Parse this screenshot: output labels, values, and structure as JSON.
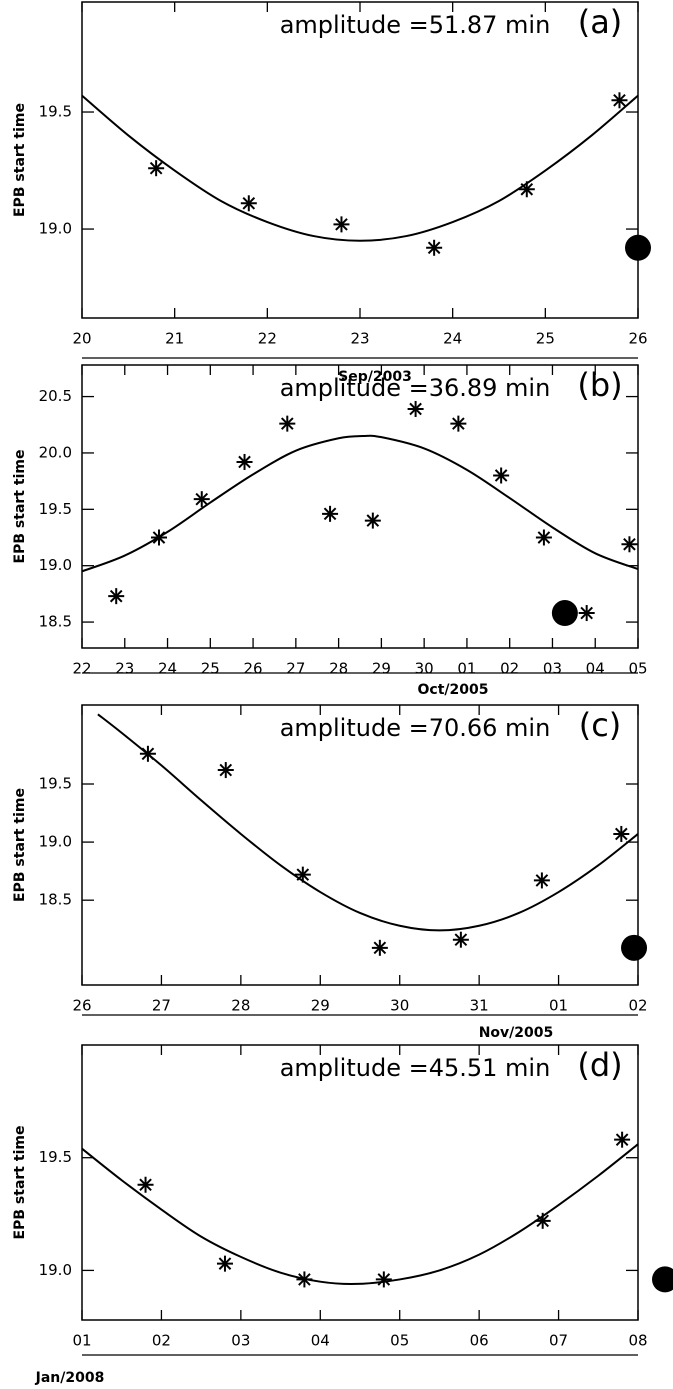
{
  "chart_data": [
    {
      "type": "scatter",
      "annotation": "amplitude =51.87 min",
      "panel_label": "(a)",
      "ylabel": "EPB start time",
      "xlabel": "Sep/2003",
      "xlim": [
        20,
        26
      ],
      "ylim": [
        18.62,
        19.97
      ],
      "xticks": [
        20,
        21,
        22,
        23,
        24,
        25,
        26
      ],
      "yticks": [
        {
          "value": 19,
          "label": "19.0"
        },
        19.5
      ],
      "series": [
        {
          "mode": "markers",
          "marker": "asterisk",
          "color": "#000000",
          "x": [
            20.8,
            21.8,
            22.8,
            23.8,
            24.8,
            25.8
          ],
          "values": [
            19.26,
            19.11,
            19.02,
            18.92,
            19.17,
            19.55
          ]
        },
        {
          "mode": "line",
          "color": "#000000",
          "x": [
            20,
            20.5,
            21,
            21.5,
            22,
            22.5,
            23,
            23.5,
            24,
            24.5,
            25,
            25.5,
            26
          ],
          "values": [
            19.57,
            19.4,
            19.25,
            19.12,
            19.03,
            18.97,
            18.95,
            18.97,
            19.03,
            19.12,
            19.25,
            19.4,
            19.57
          ]
        },
        {
          "mode": "markers",
          "marker": "dot",
          "color": "#000000",
          "x": [
            26
          ],
          "values": [
            18.92
          ]
        }
      ]
    },
    {
      "type": "scatter",
      "annotation": "amplitude =36.89 min",
      "panel_label": "(b)",
      "ylabel": "EPB start time",
      "xlabel": "Oct/2005",
      "xlim": [
        22,
        35
      ],
      "ylim": [
        18.27,
        20.78
      ],
      "xticks": [
        22,
        23,
        24,
        25,
        26,
        27,
        28,
        29,
        30,
        {
          "value": 31,
          "label": "01"
        },
        {
          "value": 32,
          "label": "02"
        },
        {
          "value": 33,
          "label": "03"
        },
        {
          "value": 34,
          "label": "04"
        },
        {
          "value": 35,
          "label": "05"
        }
      ],
      "yticks": [
        18.5,
        {
          "value": 19,
          "label": "19.0"
        },
        19.5,
        {
          "value": 20,
          "label": "20.0"
        },
        20.5
      ],
      "series": [
        {
          "mode": "markers",
          "marker": "asterisk",
          "color": "#000000",
          "x": [
            22.8,
            23.8,
            24.8,
            25.8,
            26.8,
            27.8,
            28.8,
            29.8,
            30.8,
            31.8,
            32.8,
            33.8,
            34.8
          ],
          "values": [
            18.73,
            19.25,
            19.59,
            19.92,
            20.26,
            19.46,
            19.4,
            20.39,
            20.26,
            19.8,
            19.25,
            18.58,
            19.19
          ]
        },
        {
          "mode": "line",
          "color": "#000000",
          "x": [
            22,
            23,
            24,
            25,
            26,
            27,
            28,
            28.57,
            29,
            30,
            31,
            32,
            33,
            34,
            35
          ],
          "values": [
            18.95,
            19.09,
            19.3,
            19.56,
            19.81,
            20.02,
            20.13,
            20.15,
            20.14,
            20.04,
            19.85,
            19.6,
            19.34,
            19.11,
            18.97
          ]
        },
        {
          "mode": "markers",
          "marker": "dot",
          "color": "#000000",
          "x": [
            33.29
          ],
          "values": [
            18.58
          ]
        }
      ]
    },
    {
      "type": "scatter",
      "annotation": "amplitude =70.66 min",
      "panel_label": "(c)",
      "ylabel": "EPB start time",
      "xlabel": "Nov/2005",
      "xlim": [
        26,
        33
      ],
      "ylim": [
        17.77,
        20.18
      ],
      "xticks": [
        26,
        27,
        28,
        29,
        30,
        31,
        {
          "value": 32,
          "label": "01"
        },
        {
          "value": 33,
          "label": "02"
        }
      ],
      "yticks": [
        18.5,
        {
          "value": 19,
          "label": "19.0"
        },
        19.5
      ],
      "series": [
        {
          "mode": "markers",
          "marker": "asterisk",
          "color": "#000000",
          "x": [
            26.83,
            27.81,
            28.78,
            29.75,
            30.77,
            31.79,
            32.79
          ],
          "values": [
            19.76,
            19.62,
            18.72,
            18.09,
            18.16,
            18.67,
            19.07
          ]
        },
        {
          "mode": "line",
          "color": "#000000",
          "x": [
            26.2,
            26.5,
            27,
            27.5,
            28,
            28.5,
            29,
            29.5,
            30,
            30.5,
            31,
            31.5,
            32,
            32.5,
            33
          ],
          "values": [
            20.1,
            19.94,
            19.66,
            19.36,
            19.07,
            18.8,
            18.57,
            18.39,
            18.28,
            18.24,
            18.28,
            18.39,
            18.57,
            18.8,
            19.07
          ]
        },
        {
          "mode": "markers",
          "marker": "dot",
          "color": "#000000",
          "x": [
            32.95
          ],
          "values": [
            18.09
          ]
        }
      ]
    },
    {
      "type": "scatter",
      "annotation": "amplitude =45.51 min",
      "panel_label": "(d)",
      "ylabel": "EPB start time",
      "xlabel": "Jan/2008",
      "xlim": [
        1,
        8
      ],
      "ylim": [
        18.78,
        20.0
      ],
      "xticks": [
        {
          "value": 1,
          "label": "01"
        },
        {
          "value": 2,
          "label": "02"
        },
        {
          "value": 3,
          "label": "03"
        },
        {
          "value": 4,
          "label": "04"
        },
        {
          "value": 5,
          "label": "05"
        },
        {
          "value": 6,
          "label": "06"
        },
        {
          "value": 7,
          "label": "07"
        },
        {
          "value": 8,
          "label": "08"
        }
      ],
      "yticks": [
        {
          "value": 19,
          "label": "19.0"
        },
        19.5
      ],
      "series": [
        {
          "mode": "markers",
          "marker": "asterisk",
          "color": "#000000",
          "x": [
            1.8,
            2.8,
            3.8,
            4.8,
            6.8,
            7.8
          ],
          "values": [
            19.38,
            19.03,
            18.96,
            18.96,
            19.22,
            19.58
          ]
        },
        {
          "mode": "line",
          "color": "#000000",
          "x": [
            1,
            1.5,
            2,
            2.5,
            3,
            3.5,
            4,
            4.46,
            5,
            5.5,
            6,
            6.5,
            7,
            7.5,
            8
          ],
          "values": [
            19.54,
            19.4,
            19.27,
            19.15,
            19.06,
            18.99,
            18.95,
            18.94,
            18.96,
            19.0,
            19.07,
            19.17,
            19.29,
            19.42,
            19.56
          ]
        },
        {
          "mode": "markers",
          "marker": "dot",
          "color": "#000000",
          "x": [
            8.34
          ],
          "values": [
            18.96
          ]
        }
      ]
    }
  ]
}
